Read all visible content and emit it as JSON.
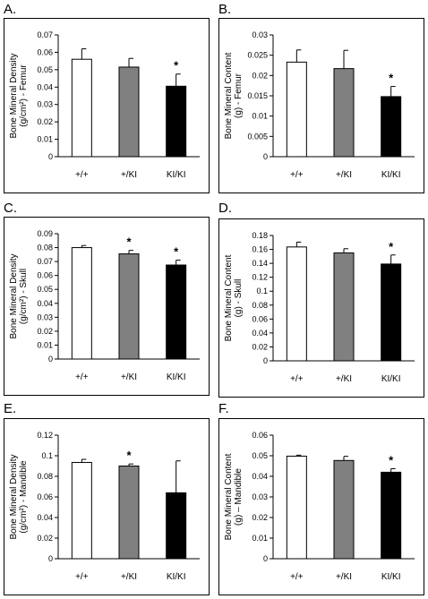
{
  "chart_data": [
    {
      "letter": "A.",
      "type": "bar",
      "ylabel_lines": [
        "Bone Mineral Density",
        "(g/cm²) - Femur"
      ],
      "categories": [
        "+/+",
        "+/KI",
        "KI/KI"
      ],
      "values": [
        0.056,
        0.0515,
        0.0405
      ],
      "errors": [
        0.006,
        0.005,
        0.007
      ],
      "significant": [
        false,
        false,
        true
      ],
      "ylim": [
        0,
        0.07
      ],
      "yticks": [
        "0",
        "0.01",
        "0.02",
        "0.03",
        "0.04",
        "0.05",
        "0.06",
        "0.07"
      ],
      "colors": [
        "#ffffff",
        "#808080",
        "#000000"
      ]
    },
    {
      "letter": "B.",
      "type": "bar",
      "ylabel_lines": [
        "Bone Mineral Content",
        "(g) - Femur"
      ],
      "categories": [
        "+/+",
        "+/KI",
        "KI/KI"
      ],
      "values": [
        0.0233,
        0.0217,
        0.0148
      ],
      "errors": [
        0.003,
        0.0045,
        0.0025
      ],
      "significant": [
        false,
        false,
        true
      ],
      "ylim": [
        0,
        0.03
      ],
      "yticks": [
        "0",
        "0.005",
        "0.01",
        "0.015",
        "0.02",
        "0.025",
        "0.03"
      ],
      "colors": [
        "#ffffff",
        "#808080",
        "#000000"
      ]
    },
    {
      "letter": "C.",
      "type": "bar",
      "ylabel_lines": [
        "Bone Mineral Density",
        "(g/cm²) - Skull"
      ],
      "categories": [
        "+/+",
        "+/KI",
        "KI/KI"
      ],
      "values": [
        0.08,
        0.0755,
        0.0675
      ],
      "errors": [
        0.0015,
        0.0025,
        0.0035
      ],
      "significant": [
        false,
        true,
        true
      ],
      "ylim": [
        0,
        0.09
      ],
      "yticks": [
        "0",
        "0.01",
        "0.02",
        "0.03",
        "0.04",
        "0.05",
        "0.06",
        "0.07",
        "0.08",
        "0.09"
      ],
      "colors": [
        "#ffffff",
        "#808080",
        "#000000"
      ]
    },
    {
      "letter": "D.",
      "type": "bar",
      "ylabel_lines": [
        "Bone Mineral Content",
        "(g) - Skull"
      ],
      "categories": [
        "+/+",
        "+/KI",
        "KI/KI"
      ],
      "values": [
        0.1635,
        0.155,
        0.139
      ],
      "errors": [
        0.007,
        0.006,
        0.013
      ],
      "significant": [
        false,
        false,
        true
      ],
      "ylim": [
        0,
        0.18
      ],
      "yticks": [
        "0",
        "0.02",
        "0.04",
        "0.06",
        "0.08",
        "0.1",
        "0.12",
        "0.14",
        "0.16",
        "0.18"
      ],
      "colors": [
        "#ffffff",
        "#808080",
        "#000000"
      ]
    },
    {
      "letter": "E.",
      "type": "bar",
      "ylabel_lines": [
        "Bone Mineral Density",
        "(g/cm²) - Mandible"
      ],
      "categories": [
        "+/+",
        "+/KI",
        "KI/KI"
      ],
      "values": [
        0.0935,
        0.09,
        0.064
      ],
      "errors": [
        0.003,
        0.002,
        0.031
      ],
      "significant": [
        false,
        true,
        false
      ],
      "ylim": [
        0,
        0.12
      ],
      "yticks": [
        "0",
        "0.02",
        "0.04",
        "0.06",
        "0.08",
        "0.1",
        "0.12"
      ],
      "colors": [
        "#ffffff",
        "#808080",
        "#000000"
      ]
    },
    {
      "letter": "F.",
      "type": "bar",
      "ylabel_lines": [
        "Bone Mineral  Content",
        "(g) – Mandible"
      ],
      "categories": [
        "+/+",
        "+/KI",
        "KI/KI"
      ],
      "values": [
        0.0498,
        0.0477,
        0.042
      ],
      "errors": [
        0.0005,
        0.002,
        0.0017
      ],
      "significant": [
        false,
        false,
        true
      ],
      "ylim": [
        0,
        0.06
      ],
      "yticks": [
        "0",
        "0.01",
        "0.02",
        "0.03",
        "0.04",
        "0.05",
        "0.06"
      ],
      "colors": [
        "#ffffff",
        "#808080",
        "#000000"
      ]
    }
  ],
  "significance_marker": "*"
}
